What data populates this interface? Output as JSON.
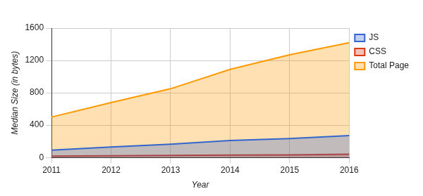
{
  "chart_data": {
    "type": "area",
    "x_label": "Year",
    "y_label": "Median Size (in bytes)",
    "categories": [
      "2011",
      "2012",
      "2013",
      "2014",
      "2015",
      "2016"
    ],
    "series": [
      {
        "name": "JS",
        "color": "#3366cc",
        "values": [
          90,
          130,
          165,
          210,
          235,
          270
        ]
      },
      {
        "name": "CSS",
        "color": "#dc3912",
        "values": [
          18,
          22,
          25,
          30,
          33,
          40
        ]
      },
      {
        "name": "Total Page",
        "color": "#ff9900",
        "values": [
          500,
          680,
          850,
          1090,
          1270,
          1420
        ]
      }
    ],
    "ylim": [
      0,
      1600
    ],
    "yticks": [
      0,
      400,
      800,
      1200,
      1600
    ],
    "grid": true,
    "legend": "right"
  }
}
